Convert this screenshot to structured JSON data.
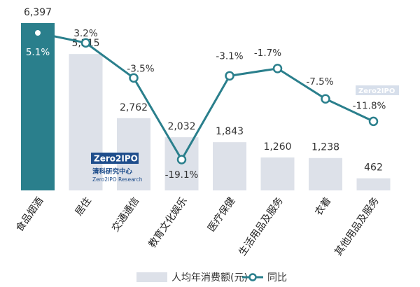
{
  "chart_data": {
    "type": "bar+line",
    "categories": [
      "食品烟酒",
      "居住",
      "交通通信",
      "教育文化娱乐",
      "医疗保健",
      "生活用品及服务",
      "衣着",
      "其他用品及服务"
    ],
    "series": [
      {
        "name": "人均年消费额(元)",
        "type": "bar",
        "values": [
          6397,
          5215,
          2762,
          2032,
          1843,
          1260,
          1238,
          462
        ],
        "labels": [
          "6,397",
          "5,215",
          "2,762",
          "2,032",
          "1,843",
          "1,260",
          "1,238",
          "462"
        ],
        "highlight_index": 0,
        "highlight_color": "#2a7f8c",
        "color": "#dde1e9"
      },
      {
        "name": "同比",
        "type": "line",
        "values": [
          5.1,
          3.2,
          -3.5,
          -19.1,
          -3.1,
          -1.7,
          -7.5,
          -11.8
        ],
        "labels": [
          "5.1%",
          "3.2%",
          "-3.5%",
          "-19.1%",
          "-3.1%",
          "-1.7%",
          "-7.5%",
          "-11.8%"
        ],
        "color": "#2a7f8c"
      }
    ],
    "bar_ylim": [
      0,
      6397
    ],
    "line_ylim": [
      -19.1,
      5.1
    ],
    "grid": false,
    "legend": "bottom-center"
  },
  "watermark": {
    "logo_text": "Zero2IPO",
    "cn_text": "清科研究中心",
    "en_text": "Zero2IPO Research"
  }
}
